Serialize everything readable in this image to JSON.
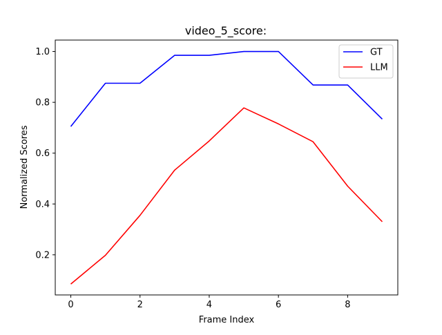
{
  "chart_data": {
    "type": "line",
    "title": "video_5_score:",
    "xlabel": "Frame Index",
    "ylabel": "Normalized Scores",
    "x": [
      0,
      1,
      2,
      3,
      4,
      5,
      6,
      7,
      8,
      9
    ],
    "xlim": [
      -0.45,
      9.45
    ],
    "ylim": [
      0.042,
      1.045
    ],
    "xticks": [
      0,
      2,
      4,
      6,
      8
    ],
    "yticks": [
      0.2,
      0.4,
      0.6,
      0.8,
      1.0
    ],
    "xtick_labels": [
      "0",
      "2",
      "4",
      "6",
      "8"
    ],
    "ytick_labels": [
      "0.2",
      "0.4",
      "0.6",
      "0.8",
      "1.0"
    ],
    "grid": false,
    "legend_position": "top-right",
    "series": [
      {
        "name": "GT",
        "color": "#0000ff",
        "values": [
          0.705,
          0.875,
          0.875,
          0.985,
          0.985,
          1.0,
          1.0,
          0.868,
          0.868,
          0.734
        ]
      },
      {
        "name": "LLM",
        "color": "#ff0000",
        "values": [
          0.085,
          0.198,
          0.355,
          0.533,
          0.648,
          0.778,
          0.715,
          0.645,
          0.47,
          0.33
        ]
      }
    ]
  }
}
